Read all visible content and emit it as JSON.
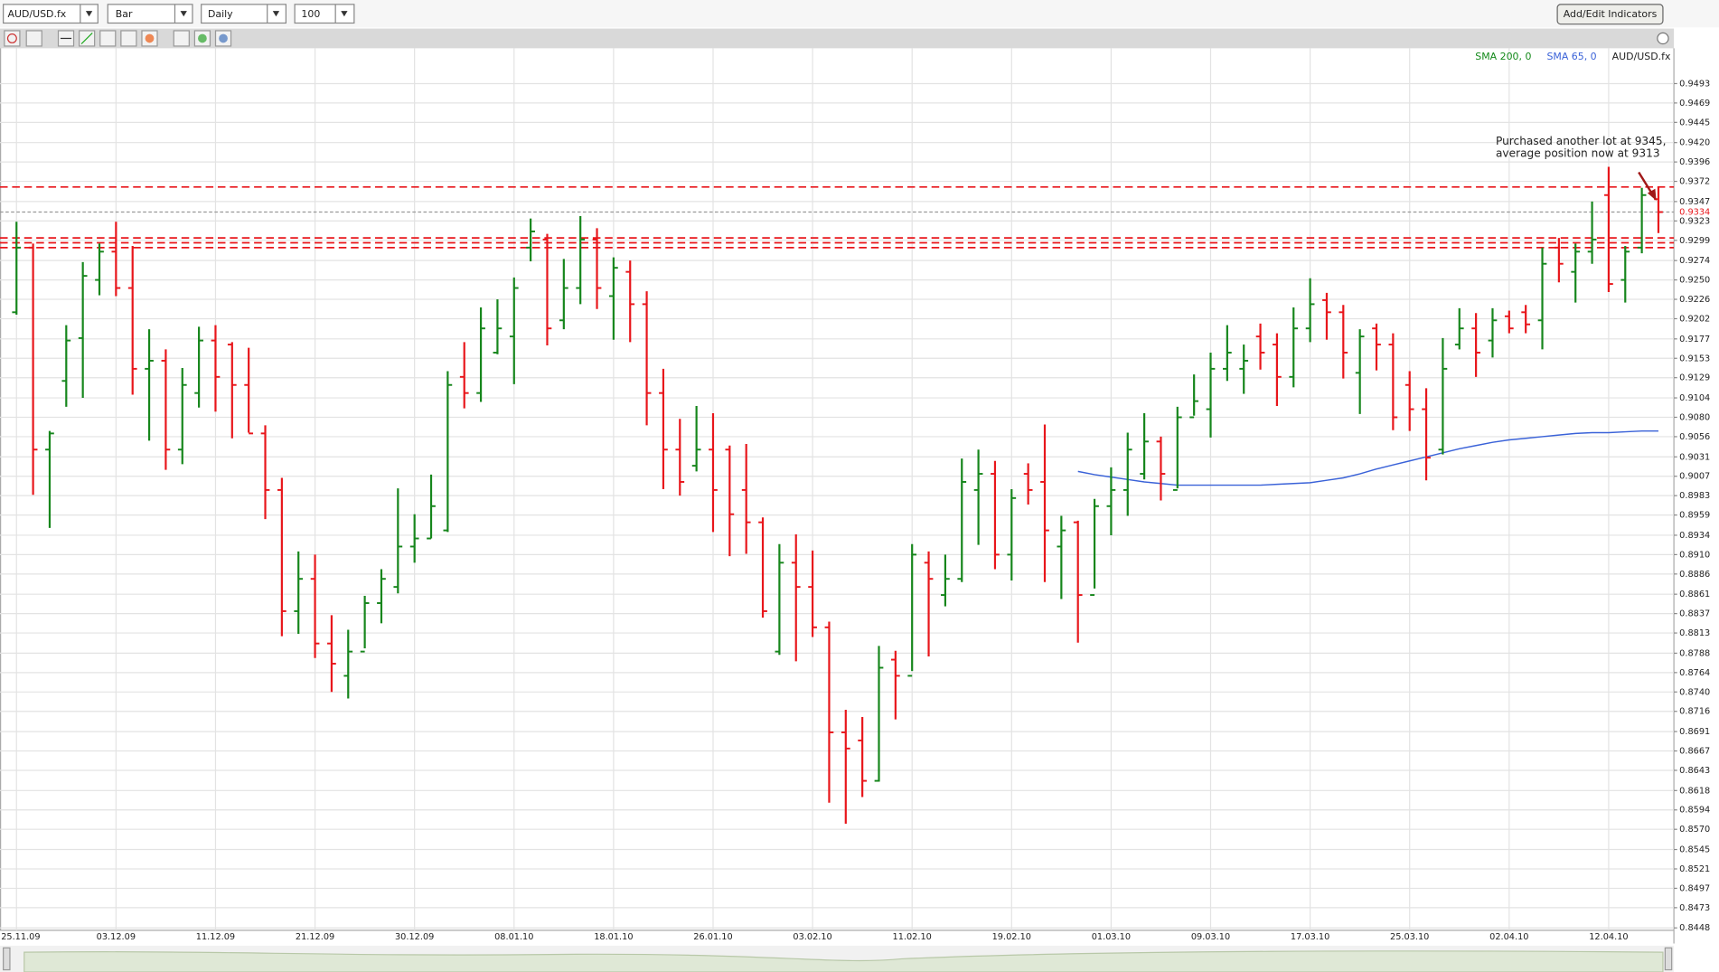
{
  "toolbar": {
    "symbol": "AUD/USD.fx",
    "chart_type": "Bar",
    "period": "Daily",
    "bars": 100,
    "button": "Add/Edit Indicators"
  },
  "chart_data": {
    "type": "ohlc",
    "categories": [
      "25.11.09",
      null,
      null,
      null,
      null,
      null,
      "03.12.09",
      null,
      null,
      null,
      null,
      null,
      "11.12.09",
      null,
      null,
      null,
      null,
      null,
      "21.12.09",
      null,
      null,
      null,
      null,
      null,
      "30.12.09",
      null,
      null,
      null,
      null,
      null,
      "08.01.10",
      null,
      null,
      null,
      null,
      null,
      "18.01.10",
      null,
      null,
      null,
      null,
      null,
      "26.01.10",
      null,
      null,
      null,
      null,
      null,
      "03.02.10",
      null,
      null,
      null,
      null,
      null,
      "11.02.10",
      null,
      null,
      null,
      null,
      null,
      "19.02.10",
      null,
      null,
      null,
      null,
      null,
      "01.03.10",
      null,
      null,
      null,
      null,
      null,
      "09.03.10",
      null,
      null,
      null,
      null,
      null,
      "17.03.10",
      null,
      null,
      null,
      null,
      null,
      "25.03.10",
      null,
      null,
      null,
      null,
      null,
      "02.04.10",
      null,
      null,
      null,
      null,
      null,
      "12.04.10",
      null,
      null,
      null
    ],
    "series": [
      {
        "name": "SMA 200, 0",
        "color": "#13891a",
        "values": [
          null,
          null,
          null,
          null,
          null,
          null,
          null,
          null,
          null,
          null,
          null,
          null,
          null,
          null,
          null,
          null,
          null,
          null,
          null,
          null,
          null,
          null,
          null,
          null,
          null,
          null,
          null,
          null,
          null,
          null,
          null,
          null,
          null,
          null,
          null,
          null,
          null,
          null,
          null,
          null,
          null,
          null,
          null,
          null,
          null,
          null,
          null,
          null,
          null,
          null,
          null,
          null,
          null,
          null,
          null,
          null,
          null,
          null,
          null,
          null,
          null,
          null,
          null,
          null,
          null,
          null,
          null,
          null,
          null,
          null,
          null,
          null,
          null,
          null,
          null,
          null,
          null,
          null,
          null,
          null,
          null,
          null,
          null,
          null,
          null,
          null,
          null,
          null,
          null,
          null,
          null,
          null,
          null,
          null,
          null,
          null,
          null,
          null,
          null,
          null
        ]
      },
      {
        "name": "SMA 65, 0",
        "color": "#3a62d8",
        "values": [
          null,
          null,
          null,
          null,
          null,
          null,
          null,
          null,
          null,
          null,
          null,
          null,
          null,
          null,
          null,
          null,
          null,
          null,
          null,
          null,
          null,
          null,
          null,
          null,
          null,
          null,
          null,
          null,
          null,
          null,
          null,
          null,
          null,
          null,
          null,
          null,
          null,
          null,
          null,
          null,
          null,
          null,
          null,
          null,
          null,
          null,
          null,
          null,
          null,
          null,
          null,
          null,
          null,
          null,
          null,
          null,
          null,
          null,
          null,
          null,
          null,
          null,
          null,
          null,
          0.9013,
          0.9009,
          0.9006,
          0.9003,
          0.9,
          0.8998,
          0.8996,
          0.8996,
          0.8996,
          0.8996,
          0.8996,
          0.8996,
          0.8997,
          0.8998,
          0.8999,
          0.9002,
          0.9005,
          0.901,
          0.9016,
          0.9021,
          0.9026,
          0.9031,
          0.9036,
          0.9041,
          0.9045,
          0.9049,
          0.9052,
          0.9054,
          0.9056,
          0.9058,
          0.906,
          0.9061,
          0.9061,
          0.9062,
          0.9063,
          0.9063
        ]
      },
      {
        "name": "AUD/USD.fx",
        "up_color": "#16861c",
        "down_color": "#e8161b",
        "open": [
          0.921,
          0.929,
          0.904,
          0.9125,
          0.9178,
          0.925,
          0.9285,
          0.924,
          0.914,
          0.915,
          0.904,
          0.911,
          0.9175,
          0.917,
          0.912,
          0.906,
          0.899,
          0.884,
          0.888,
          0.88,
          0.876,
          0.879,
          0.885,
          0.887,
          0.892,
          0.893,
          0.894,
          0.913,
          0.911,
          0.916,
          0.918,
          0.929,
          0.93,
          0.92,
          0.924,
          0.93,
          0.923,
          0.926,
          0.922,
          0.911,
          0.904,
          0.902,
          0.904,
          0.904,
          0.899,
          0.895,
          0.879,
          0.89,
          0.887,
          0.882,
          0.869,
          0.868,
          0.863,
          0.878,
          0.876,
          0.89,
          0.886,
          0.888,
          0.899,
          0.901,
          0.891,
          0.901,
          0.9,
          0.892,
          0.895,
          0.886,
          0.897,
          0.899,
          0.901,
          0.905,
          0.899,
          0.908,
          0.909,
          0.914,
          0.914,
          0.918,
          0.917,
          0.913,
          0.919,
          0.9225,
          0.921,
          0.9135,
          0.919,
          0.917,
          0.912,
          0.909,
          0.904,
          0.917,
          0.919,
          0.9175,
          0.9205,
          0.921,
          0.92,
          0.929,
          0.926,
          0.9285,
          0.9355,
          0.925,
          0.929,
          0.935
        ],
        "high": [
          0.9322,
          0.9295,
          0.9063,
          0.9194,
          0.9272,
          0.9295,
          0.9322,
          0.9292,
          0.9189,
          0.9164,
          0.9141,
          0.9192,
          0.9194,
          0.9173,
          0.9166,
          0.907,
          0.9005,
          0.8914,
          0.891,
          0.8835,
          0.8817,
          0.8859,
          0.8892,
          0.8992,
          0.896,
          0.9009,
          0.9137,
          0.9173,
          0.9216,
          0.9226,
          0.9253,
          0.9326,
          0.9307,
          0.9276,
          0.9329,
          0.9314,
          0.9278,
          0.9274,
          0.9236,
          0.914,
          0.9078,
          0.9094,
          0.9085,
          0.9045,
          0.9047,
          0.8956,
          0.8923,
          0.8935,
          0.8915,
          0.8827,
          0.8718,
          0.8709,
          0.8797,
          0.8791,
          0.8923,
          0.8914,
          0.891,
          0.9029,
          0.904,
          0.9026,
          0.8991,
          0.9023,
          0.9071,
          0.8958,
          0.8952,
          0.8979,
          0.9018,
          0.9061,
          0.9085,
          0.9056,
          0.9093,
          0.9133,
          0.916,
          0.9194,
          0.917,
          0.9196,
          0.9184,
          0.9216,
          0.9252,
          0.9234,
          0.9219,
          0.9189,
          0.9196,
          0.9184,
          0.9137,
          0.9116,
          0.9178,
          0.9215,
          0.9209,
          0.9215,
          0.9212,
          0.9219,
          0.929,
          0.9302,
          0.9295,
          0.9347,
          0.939,
          0.9292,
          0.9364,
          0.9365
        ],
        "low": [
          0.9207,
          0.8984,
          0.8943,
          0.9093,
          0.9104,
          0.9231,
          0.923,
          0.9108,
          0.9051,
          0.9015,
          0.9022,
          0.9092,
          0.9087,
          0.9054,
          0.9061,
          0.8954,
          0.8809,
          0.8812,
          0.8782,
          0.874,
          0.8732,
          0.8794,
          0.8825,
          0.8862,
          0.89,
          0.893,
          0.8938,
          0.9091,
          0.9099,
          0.9158,
          0.9121,
          0.9273,
          0.9169,
          0.9189,
          0.922,
          0.9214,
          0.9176,
          0.9173,
          0.907,
          0.8991,
          0.8983,
          0.9013,
          0.8938,
          0.8908,
          0.8911,
          0.8832,
          0.8786,
          0.8778,
          0.8808,
          0.8603,
          0.8577,
          0.861,
          0.8629,
          0.8706,
          0.8766,
          0.8784,
          0.8846,
          0.8876,
          0.8922,
          0.8892,
          0.8878,
          0.8972,
          0.8876,
          0.8855,
          0.8801,
          0.8868,
          0.8934,
          0.8958,
          0.9003,
          0.8977,
          0.8992,
          0.9082,
          0.9055,
          0.9125,
          0.9109,
          0.9139,
          0.9094,
          0.9117,
          0.9173,
          0.9176,
          0.9128,
          0.9084,
          0.9138,
          0.9064,
          0.9063,
          0.9002,
          0.9034,
          0.9164,
          0.913,
          0.9154,
          0.9184,
          0.9184,
          0.9164,
          0.9247,
          0.9222,
          0.927,
          0.9235,
          0.9222,
          0.9283,
          0.9308
        ],
        "close": [
          0.929,
          0.904,
          0.906,
          0.9175,
          0.9255,
          0.9285,
          0.924,
          0.914,
          0.915,
          0.904,
          0.912,
          0.9175,
          0.913,
          0.912,
          0.906,
          0.899,
          0.884,
          0.888,
          0.88,
          0.8775,
          0.879,
          0.885,
          0.888,
          0.892,
          0.893,
          0.897,
          0.912,
          0.911,
          0.919,
          0.919,
          0.924,
          0.931,
          0.919,
          0.924,
          0.93,
          0.924,
          0.9265,
          0.922,
          0.911,
          0.904,
          0.9,
          0.904,
          0.899,
          0.896,
          0.895,
          0.884,
          0.89,
          0.887,
          0.882,
          0.869,
          0.867,
          0.863,
          0.877,
          0.876,
          0.891,
          0.888,
          0.888,
          0.9,
          0.901,
          0.891,
          0.898,
          0.899,
          0.894,
          0.894,
          0.886,
          0.897,
          0.899,
          0.904,
          0.905,
          0.901,
          0.908,
          0.91,
          0.914,
          0.916,
          0.915,
          0.916,
          0.913,
          0.919,
          0.922,
          0.921,
          0.916,
          0.918,
          0.917,
          0.908,
          0.909,
          0.903,
          0.914,
          0.919,
          0.916,
          0.92,
          0.919,
          0.9195,
          0.927,
          0.927,
          0.9285,
          0.93,
          0.9245,
          0.9285,
          0.9355,
          0.9334
        ]
      }
    ],
    "ylim": [
      0.8445,
      0.9515
    ],
    "yticks": [
      0.9493,
      0.9469,
      0.9445,
      {
        "value": 0.942,
        "label": "0.9420"
      },
      0.9396,
      0.9372,
      0.9347,
      0.9323,
      0.9299,
      0.9274,
      {
        "value": 0.925,
        "label": "0.9250"
      },
      0.9226,
      0.9202,
      0.9177,
      0.9153,
      0.9129,
      0.9104,
      {
        "value": 0.908,
        "label": "0.9080"
      },
      0.9056,
      0.9031,
      0.9007,
      0.8983,
      0.8959,
      0.8934,
      {
        "value": 0.891,
        "label": "0.8910"
      },
      0.8886,
      0.8861,
      0.8837,
      0.8813,
      0.8788,
      0.8764,
      {
        "value": 0.874,
        "label": "0.8740"
      },
      0.8716,
      0.8691,
      0.8667,
      0.8643,
      0.8618,
      0.8594,
      {
        "value": 0.857,
        "label": "0.8570"
      },
      0.8545,
      0.8521,
      0.8497,
      0.8473,
      0.8448
    ],
    "grid": true,
    "last_price": 0.9334,
    "levels": [
      0.9365,
      0.9302,
      0.9296,
      0.929
    ],
    "level_color": "#e8161b",
    "annotation": [
      "Purchased another lot at 9345,",
      "average position now at 9313"
    ]
  }
}
